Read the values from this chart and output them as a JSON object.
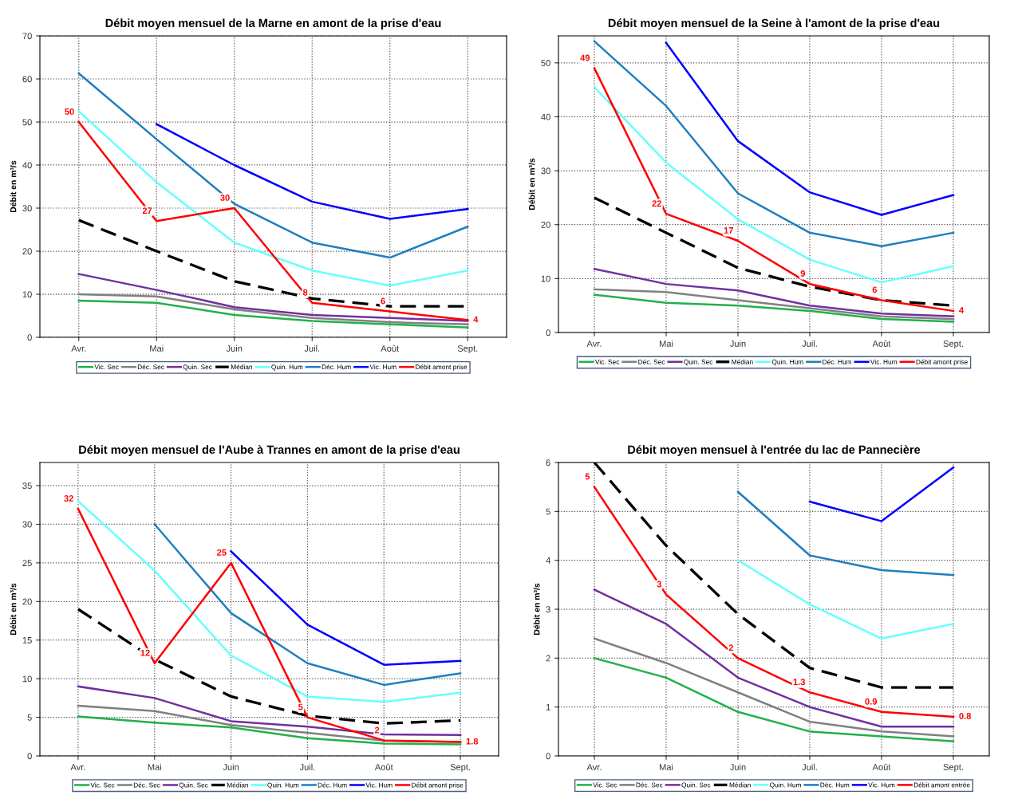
{
  "chart_data": [
    {
      "type": "line",
      "title": "Débit moyen mensuel de la Marne en amont de la prise d'eau",
      "ylabel": "Débit en m³/s",
      "categories": [
        "Avr.",
        "Mai",
        "Juin",
        "Juil.",
        "Août",
        "Sept."
      ],
      "ylim": [
        0,
        70
      ],
      "yticks": [
        0,
        10,
        20,
        30,
        40,
        50,
        60,
        70
      ],
      "grid": true,
      "legend": "bottom",
      "line_style": "solid",
      "marker": "none",
      "series": [
        {
          "name": "Vic. Sec",
          "color": "#22b04b",
          "values": [
            8.5,
            8,
            5.2,
            3.8,
            3,
            2.3
          ]
        },
        {
          "name": "Déc. Sec",
          "color": "#808080",
          "values": [
            10,
            9.5,
            6.5,
            4.5,
            3.5,
            3
          ]
        },
        {
          "name": "Quin. Sec",
          "color": "#7030a0",
          "values": [
            14.7,
            11,
            7,
            5.2,
            4.5,
            3.8
          ]
        },
        {
          "name": "Médian",
          "color": "#000000",
          "line_style": "dashed",
          "values": [
            27.2,
            20,
            13,
            9,
            7.2,
            7.2
          ]
        },
        {
          "name": "Quin. Hum",
          "color": "#66ffff",
          "values": [
            52.5,
            36,
            22,
            15.5,
            12,
            15.5
          ]
        },
        {
          "name": "Déc. Hum",
          "color": "#1f7fbf",
          "values": [
            61.3,
            46,
            31,
            22,
            18.5,
            25.7
          ]
        },
        {
          "name": "Vic. Hum",
          "color": "#0000ff",
          "values": [
            null,
            49.5,
            40,
            31.5,
            27.5,
            29.8
          ]
        },
        {
          "name": "Débit amont prise",
          "color": "#ff0000",
          "values": [
            50,
            27,
            30,
            8,
            6,
            4
          ],
          "value_labels": [
            "50",
            "27",
            "30",
            "8",
            "6",
            "4"
          ]
        }
      ]
    },
    {
      "type": "line",
      "title": "Débit moyen mensuel de la Seine à l'amont de la prise d'eau",
      "ylabel": "Débit en m³/s",
      "categories": [
        "Avr.",
        "Mai",
        "Juin",
        "Juil.",
        "Août",
        "Sept."
      ],
      "ylim": [
        0,
        55
      ],
      "yticks": [
        0,
        10,
        20,
        30,
        40,
        50
      ],
      "grid": true,
      "legend": "bottom",
      "line_style": "solid",
      "marker": "none",
      "series": [
        {
          "name": "Vic. Sec",
          "color": "#22b04b",
          "values": [
            7,
            5.5,
            5,
            4,
            2.5,
            2
          ]
        },
        {
          "name": "Déc. Sec",
          "color": "#808080",
          "values": [
            8,
            7.5,
            6,
            4.5,
            3,
            2.5
          ]
        },
        {
          "name": "Quin. Sec",
          "color": "#7030a0",
          "values": [
            11.8,
            9,
            7.8,
            5,
            3.5,
            3
          ]
        },
        {
          "name": "Médian",
          "color": "#000000",
          "line_style": "dashed",
          "values": [
            25,
            18.5,
            12,
            8.5,
            6,
            5
          ]
        },
        {
          "name": "Quin. Hum",
          "color": "#66ffff",
          "values": [
            45.5,
            31.5,
            21,
            13.5,
            9.3,
            12.3
          ]
        },
        {
          "name": "Déc. Hum",
          "color": "#1f7fbf",
          "values": [
            54,
            42,
            25.8,
            18.5,
            16,
            18.5
          ]
        },
        {
          "name": "Vic. Hum",
          "color": "#0000ff",
          "values": [
            null,
            53.7,
            35.5,
            26,
            21.8,
            25.5
          ]
        },
        {
          "name": "Débit amont prise",
          "color": "#ff0000",
          "values": [
            49,
            22,
            17,
            9,
            6,
            4
          ],
          "value_labels": [
            "49",
            "22",
            "17",
            "9",
            "6",
            "4"
          ]
        }
      ]
    },
    {
      "type": "line",
      "title": "Débit moyen mensuel de l'Aube à Trannes en amont de la prise d'eau",
      "ylabel": "Débit en m³/s",
      "categories": [
        "Avr.",
        "Mai",
        "Juin",
        "Juil.",
        "Août",
        "Sept."
      ],
      "ylim": [
        0,
        38
      ],
      "yticks": [
        0,
        5,
        10,
        15,
        20,
        25,
        30,
        35
      ],
      "grid": true,
      "legend": "bottom",
      "line_style": "solid",
      "marker": "none",
      "series": [
        {
          "name": "Vic. Sec",
          "color": "#22b04b",
          "values": [
            5.1,
            4.3,
            3.7,
            2.3,
            1.6,
            1.5
          ]
        },
        {
          "name": "Déc. Sec",
          "color": "#808080",
          "values": [
            6.5,
            5.8,
            4,
            3,
            2,
            1.8
          ]
        },
        {
          "name": "Quin. Sec",
          "color": "#7030a0",
          "values": [
            9,
            7.5,
            4.5,
            3.8,
            2.8,
            2.7
          ]
        },
        {
          "name": "Médian",
          "color": "#000000",
          "line_style": "dashed",
          "values": [
            19,
            12.5,
            7.7,
            5.2,
            4.2,
            4.6
          ]
        },
        {
          "name": "Quin. Hum",
          "color": "#66ffff",
          "values": [
            33,
            24,
            13,
            7.7,
            7,
            8.2
          ]
        },
        {
          "name": "Déc. Hum",
          "color": "#1f7fbf",
          "values": [
            null,
            30,
            18.5,
            12,
            9.2,
            10.7
          ]
        },
        {
          "name": "Vic. Hum",
          "color": "#0000ff",
          "values": [
            null,
            null,
            26.5,
            17,
            11.8,
            12.3
          ]
        },
        {
          "name": "Débit amont prise",
          "color": "#ff0000",
          "values": [
            32,
            12,
            25,
            5,
            2,
            1.8
          ],
          "value_labels": [
            "32",
            "12",
            "25",
            "5",
            "2",
            "1.8"
          ]
        }
      ]
    },
    {
      "type": "line",
      "title": "Débit moyen mensuel à l'entrée du lac de Pannecière",
      "ylabel": "Débit en m³/s",
      "categories": [
        "Avr.",
        "Mai",
        "Juin",
        "Juil.",
        "Août",
        "Sept."
      ],
      "ylim": [
        0,
        6
      ],
      "yticks": [
        0,
        1,
        2,
        3,
        4,
        5,
        6
      ],
      "grid": true,
      "legend": "bottom",
      "line_style": "solid",
      "marker": "none",
      "series": [
        {
          "name": "Vic. Sec",
          "color": "#22b04b",
          "values": [
            2,
            1.6,
            0.9,
            0.5,
            0.4,
            0.3
          ]
        },
        {
          "name": "Déc. Sec",
          "color": "#808080",
          "values": [
            2.4,
            1.9,
            1.3,
            0.7,
            0.5,
            0.4
          ]
        },
        {
          "name": "Quin. Sec",
          "color": "#7030a0",
          "values": [
            3.4,
            2.7,
            1.6,
            1,
            0.6,
            0.6
          ]
        },
        {
          "name": "Médian",
          "color": "#000000",
          "line_style": "dashed",
          "values": [
            6,
            4.3,
            2.9,
            1.8,
            1.4,
            1.4
          ]
        },
        {
          "name": "Quin. Hum",
          "color": "#66ffff",
          "values": [
            null,
            null,
            4,
            3.1,
            2.4,
            2.7
          ]
        },
        {
          "name": "Déc. Hum",
          "color": "#1f7fbf",
          "values": [
            null,
            null,
            5.4,
            4.1,
            3.8,
            3.7
          ]
        },
        {
          "name": "Vic. Hum",
          "color": "#0000ff",
          "values": [
            null,
            null,
            null,
            5.2,
            4.8,
            5.9
          ]
        },
        {
          "name": "Débit amont entrée",
          "color": "#ff0000",
          "values": [
            5.5,
            3.3,
            2,
            1.3,
            0.9,
            0.8
          ],
          "value_labels": [
            "5",
            "3",
            "2",
            "1.3",
            "0.9",
            "0.8"
          ]
        }
      ]
    }
  ]
}
